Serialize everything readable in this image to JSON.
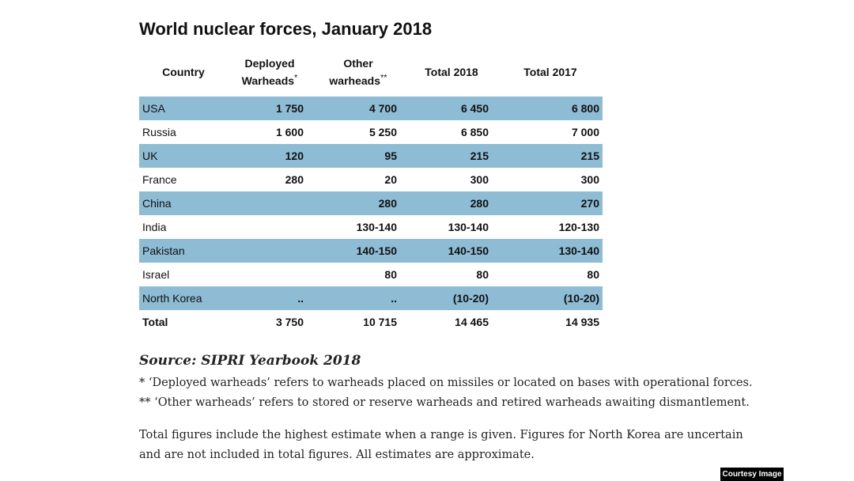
{
  "title": "World nuclear forces, January 2018",
  "headers": {
    "country": "Country",
    "deployed_line1": "Deployed",
    "deployed_line2": "Warheads",
    "deployed_mark": "*",
    "other_line1": "Other",
    "other_line2": "warheads",
    "other_mark": "**",
    "total2018": "Total 2018",
    "total2017": "Total 2017"
  },
  "rows": [
    {
      "country": "USA",
      "deployed": "1 750",
      "other": "4 700",
      "total2018": "6 450",
      "total2017": "6 800"
    },
    {
      "country": "Russia",
      "deployed": "1 600",
      "other": "5 250",
      "total2018": "6 850",
      "total2017": "7 000"
    },
    {
      "country": "UK",
      "deployed": "120",
      "other": "95",
      "total2018": "215",
      "total2017": "215"
    },
    {
      "country": "France",
      "deployed": "280",
      "other": "20",
      "total2018": "300",
      "total2017": "300"
    },
    {
      "country": "China",
      "deployed": "",
      "other": "280",
      "total2018": "280",
      "total2017": "270"
    },
    {
      "country": "India",
      "deployed": "",
      "other": "130-140",
      "total2018": "130-140",
      "total2017": "120-130"
    },
    {
      "country": "Pakistan",
      "deployed": "",
      "other": "140-150",
      "total2018": "140-150",
      "total2017": "130-140"
    },
    {
      "country": "Israel",
      "deployed": "",
      "other": "80",
      "total2018": "80",
      "total2017": "80"
    },
    {
      "country": "North Korea",
      "deployed": "..",
      "other": "..",
      "total2018": "(10-20)",
      "total2017": "(10-20)"
    }
  ],
  "total": {
    "label": "Total",
    "deployed": "3 750",
    "other": "10 715",
    "total2018": "14 465",
    "total2017": "14 935"
  },
  "source": "Source: SIPRI Yearbook 2018",
  "footnote1": "* ‘Deployed warheads’ refers to warheads placed on missiles or located on bases with operational forces.",
  "footnote2": "** ‘Other warheads’ refers to stored or reserve warheads and retired warheads awaiting dismantlement.",
  "note_line1": "Total figures include the highest estimate when a range is given. Figures for North Korea are uncertain",
  "note_line2": "and are not included in total figures. All estimates are approximate.",
  "credit": "Courtesy Image",
  "colors": {
    "row_highlight": "#8dbcd4",
    "credit_bg": "#000000"
  }
}
